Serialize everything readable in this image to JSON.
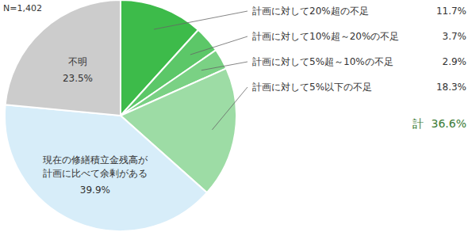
{
  "chart_data": {
    "type": "pie",
    "annotations": [
      "N=1,402"
    ],
    "categories": [
      "計画に対して20%超の不足",
      "計画に対して10%超～20%の不足",
      "計画に対して5%超～10%の不足",
      "計画に対して5%以下の不足",
      "現在の修繕積立金残高が\n計画に比べて余剰がある",
      "不明"
    ],
    "values": [
      11.7,
      3.7,
      2.9,
      18.3,
      39.9,
      23.5
    ],
    "value_labels": [
      "11.7%",
      "3.7%",
      "2.9%",
      "18.3%",
      "39.9%",
      "23.5%"
    ],
    "colors": [
      "#3dbb4a",
      "#5cc768",
      "#7ad184",
      "#9ddca5",
      "#d7edf9",
      "#cccccc"
    ],
    "total": {
      "label": "計",
      "value": 36.6,
      "value_label": "36.6%"
    }
  }
}
